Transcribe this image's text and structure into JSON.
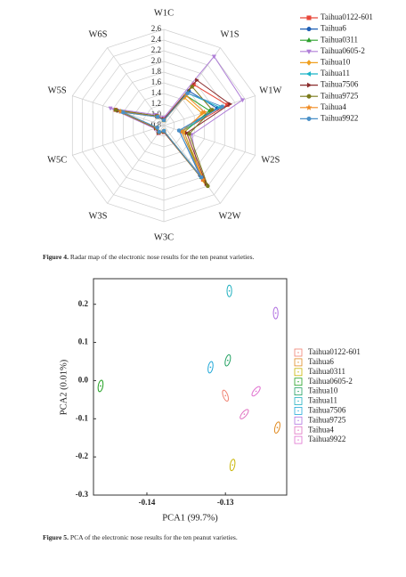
{
  "chart_data": [
    {
      "type": "radar",
      "categories": [
        "W1C",
        "W1S",
        "W1W",
        "W2S",
        "W2W",
        "W3C",
        "W3S",
        "W5C",
        "W5S",
        "W6S"
      ],
      "ylim": [
        0.8,
        2.6
      ],
      "yticks": [
        0.8,
        {
          "value": 1,
          "label": "1.0"
        },
        1.2,
        1.4,
        1.6,
        1.8,
        {
          "value": 2,
          "label": "2.0"
        },
        2.2,
        2.4,
        2.6
      ],
      "grid": true,
      "legend": "right",
      "series": [
        {
          "name": "Taihua0122-601",
          "color": "#e8473a",
          "marker": "square",
          "values": [
            0.92,
            1.75,
            2.05,
            1.15,
            2.05,
            0.92,
            0.97,
            0.95,
            1.75,
            1.02
          ]
        },
        {
          "name": "Taihua6",
          "color": "#1f5fb5",
          "marker": "circle",
          "values": [
            0.9,
            1.6,
            1.85,
            1.1,
            1.95,
            0.9,
            0.95,
            0.93,
            1.65,
            1.0
          ]
        },
        {
          "name": "Taihua0311",
          "color": "#2ca02c",
          "marker": "triangle-up",
          "values": [
            0.9,
            1.5,
            1.7,
            1.2,
            2.0,
            0.9,
            0.95,
            0.95,
            1.7,
            1.0
          ]
        },
        {
          "name": "Taihua0605-2",
          "color": "#b07fd8",
          "marker": "triangle-down",
          "values": [
            0.95,
            2.4,
            2.35,
            1.35,
            1.9,
            0.92,
            0.98,
            0.98,
            1.85,
            1.05
          ]
        },
        {
          "name": "Taihua10",
          "color": "#f0a020",
          "marker": "diamond",
          "values": [
            0.9,
            1.45,
            1.55,
            1.2,
            2.1,
            0.9,
            0.95,
            0.94,
            1.6,
            1.0
          ]
        },
        {
          "name": "Taihua11",
          "color": "#19b5c8",
          "marker": "triangle-left",
          "values": [
            0.9,
            1.55,
            1.9,
            1.15,
            2.0,
            0.9,
            0.95,
            0.93,
            1.65,
            1.0
          ]
        },
        {
          "name": "Taihua7506",
          "color": "#8a2b2b",
          "marker": "triangle-right",
          "values": [
            0.92,
            1.85,
            2.1,
            1.25,
            2.15,
            0.92,
            0.97,
            0.96,
            1.7,
            1.02
          ]
        },
        {
          "name": "Taihua9725",
          "color": "#7a7a1a",
          "marker": "circle",
          "values": [
            0.9,
            1.7,
            1.75,
            1.3,
            2.2,
            0.91,
            0.96,
            0.95,
            1.75,
            1.02
          ]
        },
        {
          "name": "Taihua4",
          "color": "#f08a20",
          "marker": "star",
          "values": [
            0.9,
            1.5,
            1.6,
            1.15,
            2.05,
            0.9,
            0.95,
            0.94,
            1.65,
            1.0
          ]
        },
        {
          "name": "Taihua9922",
          "color": "#4a90c8",
          "marker": "circle",
          "values": [
            0.9,
            1.55,
            1.95,
            1.1,
            2.0,
            0.9,
            0.95,
            0.93,
            1.6,
            1.0
          ]
        }
      ]
    },
    {
      "type": "scatter",
      "x_label": "PCA1 (99.7%)",
      "y_label": "PCA2 (0.01%)",
      "xlim": [
        -0.1468,
        -0.1222
      ],
      "xticks": [
        -0.14,
        -0.13
      ],
      "ylim": [
        -0.3,
        0.267
      ],
      "yticks": [
        -0.3,
        -0.2,
        -0.1,
        {
          "value": 0,
          "label": "0.0"
        },
        0.1,
        0.2
      ],
      "legend": "right",
      "series": [
        {
          "name": "Taihua0122-601",
          "color": "#f08070",
          "x": [
            -0.13
          ],
          "values": [
            -0.0395
          ]
        },
        {
          "name": "Taihua6",
          "color": "#e08a20",
          "x": [
            -0.1234
          ],
          "values": [
            -0.123
          ]
        },
        {
          "name": "Taihua0311",
          "color": "#c8b400",
          "x": [
            -0.1291
          ],
          "values": [
            -0.221
          ]
        },
        {
          "name": "Taihua0605-2",
          "color": "#20a020",
          "x": [
            -0.1459
          ],
          "values": [
            -0.014
          ]
        },
        {
          "name": "Taihua10",
          "color": "#20a060",
          "x": [
            -0.1297
          ],
          "values": [
            0.053
          ]
        },
        {
          "name": "Taihua11",
          "color": "#20b0c0",
          "x": [
            -0.1295
          ],
          "values": [
            0.235
          ]
        },
        {
          "name": "Taihua7506",
          "color": "#20a8d8",
          "x": [
            -0.1319
          ],
          "values": [
            0.035
          ]
        },
        {
          "name": "Taihua9725",
          "color": "#b070e0",
          "x": [
            -0.1236
          ],
          "values": [
            0.177
          ]
        },
        {
          "name": "Taihua4",
          "color": "#e070c0",
          "x": [
            -0.1276
          ],
          "values": [
            -0.088
          ]
        },
        {
          "name": "Taihua9922",
          "color": "#e070d0",
          "x": [
            -0.1261
          ],
          "values": [
            -0.028
          ]
        }
      ]
    }
  ],
  "captions": [
    {
      "label": "Figure 4.",
      "text": "Radar map of the electronic nose results for the ten peanut varieties."
    },
    {
      "label": "Figure 5.",
      "text": "PCA of the electronic nose results for the ten peanut varieties."
    }
  ]
}
